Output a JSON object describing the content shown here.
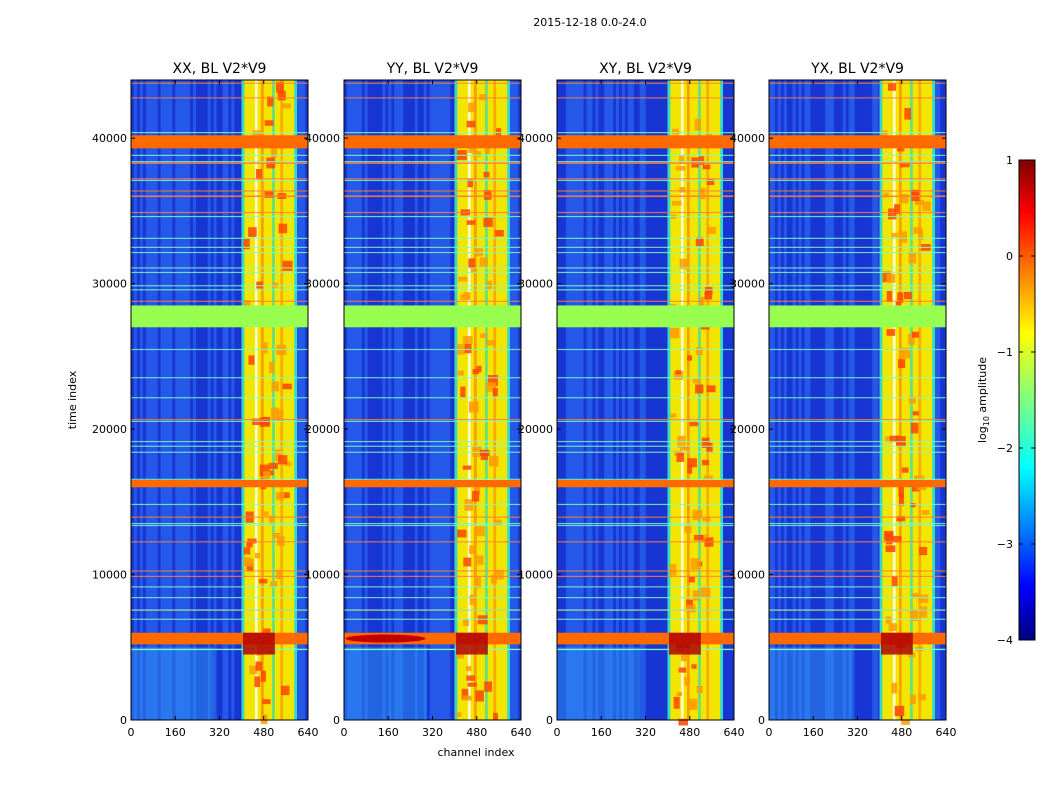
{
  "figure": {
    "suptitle": "2015-12-18 0.0-24.0",
    "xlabel": "channel index",
    "ylabel": "time index"
  },
  "chart_data": {
    "type": "heatmap",
    "title": "2015-12-18 0.0-24.0",
    "xlabel": "channel index",
    "ylabel": "time index",
    "xlim": [
      0,
      640
    ],
    "ylim": [
      0,
      44000
    ],
    "x_ticks": [
      0,
      160,
      320,
      480,
      640
    ],
    "y_ticks": [
      0,
      10000,
      20000,
      30000,
      40000
    ],
    "x_tick_labels": [
      "0",
      "160",
      "320",
      "480",
      "640"
    ],
    "y_tick_labels": [
      "0",
      "10000",
      "20000",
      "30000",
      "40000"
    ],
    "panels": [
      {
        "title": "XX, BL V2*V9",
        "polarization": "XX",
        "baseline": "V2*V9"
      },
      {
        "title": "YY, BL V2*V9",
        "polarization": "YY",
        "baseline": "V2*V9"
      },
      {
        "title": "XY, BL V2*V9",
        "polarization": "XY",
        "baseline": "V2*V9"
      },
      {
        "title": "YX, BL V2*V9",
        "polarization": "YX",
        "baseline": "V2*V9"
      }
    ],
    "features": {
      "flagged_time_band": [
        27000,
        28500
      ],
      "rfi_channel_band": [
        400,
        600
      ],
      "bright_time_bands": [
        [
          39300,
          40200
        ],
        [
          16000,
          16500
        ],
        [
          5200,
          6000
        ]
      ]
    },
    "colorbar": {
      "label": "log10 amplitude",
      "label_main": "log",
      "label_sub": "10",
      "label_rest": " amplitude",
      "range": [
        -4,
        1
      ],
      "ticks": [
        1,
        0,
        -1,
        -2,
        -3,
        -4
      ],
      "tick_labels": [
        "1",
        "0",
        "−1",
        "−2",
        "−3",
        "−4"
      ],
      "colormap": "jet",
      "colors": [
        "#00007f",
        "#0000ff",
        "#007fff",
        "#00ffff",
        "#7fff7f",
        "#ffff00",
        "#ff7f00",
        "#ff0000",
        "#7f0000"
      ]
    }
  }
}
